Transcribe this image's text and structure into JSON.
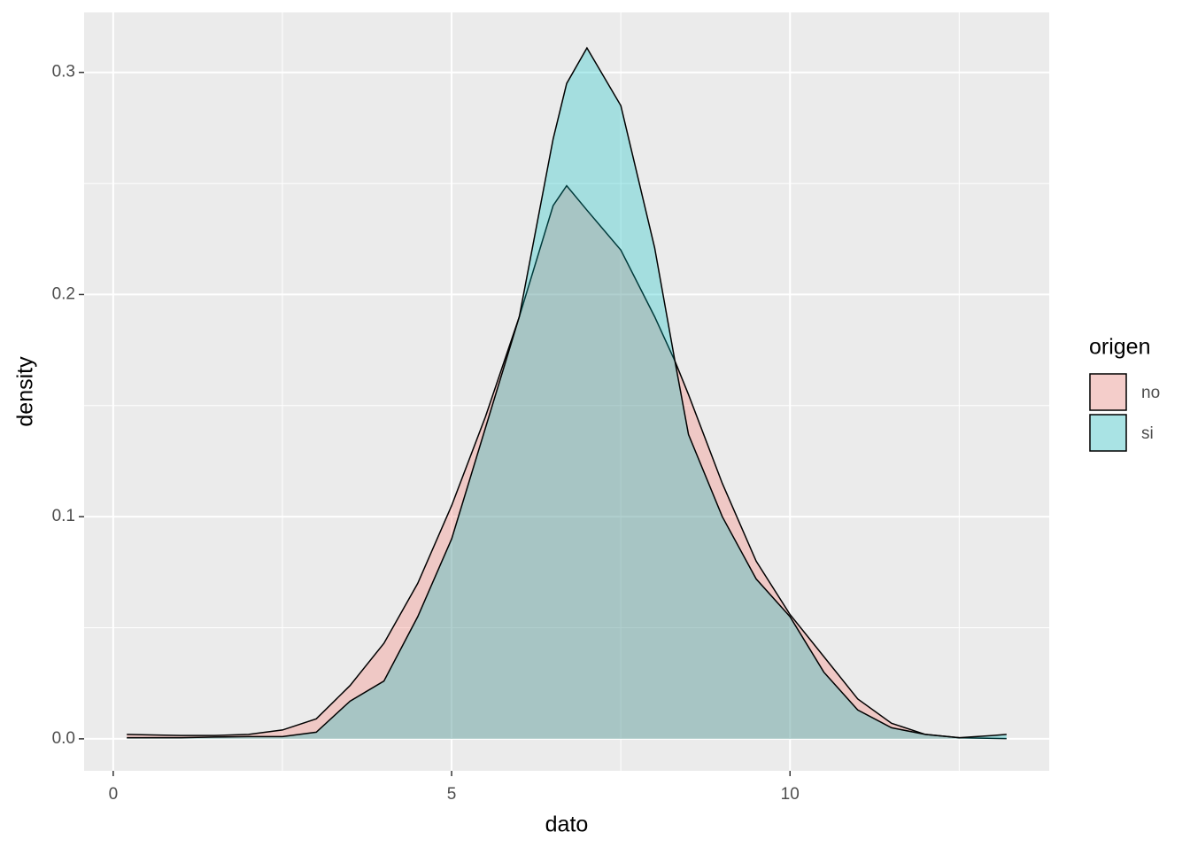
{
  "chart_data": {
    "type": "density",
    "x_label": "dato",
    "y_label": "density",
    "legend_title": "origen",
    "legend_position": "right",
    "grid": true,
    "xlim": [
      -0.43,
      13.83
    ],
    "ylim": [
      -0.0144,
      0.327
    ],
    "xticks": [
      0,
      5,
      10
    ],
    "yticks": [
      {
        "value": 0,
        "label": "0.0"
      },
      0.1,
      0.2,
      0.3
    ],
    "x_minor_ticks": [
      2.5,
      7.5,
      12.5
    ],
    "y_minor_ticks": [
      0.05,
      0.15,
      0.25
    ],
    "x": [
      0.2,
      0.5,
      1,
      1.5,
      2,
      2.5,
      3,
      3.5,
      4,
      4.5,
      5,
      5.5,
      6,
      6.5,
      6.7,
      7,
      7.5,
      8,
      8.3,
      8.5,
      9,
      9.5,
      10,
      10.5,
      11,
      11.5,
      12,
      12.5,
      13,
      13.2
    ],
    "series": [
      {
        "name": "no",
        "color": "#F8766D",
        "values": [
          0.002,
          0.0018,
          0.0015,
          0.0015,
          0.002,
          0.004,
          0.009,
          0.024,
          0.043,
          0.07,
          0.105,
          0.145,
          0.19,
          0.24,
          0.249,
          0.238,
          0.22,
          0.19,
          0.17,
          0.155,
          0.115,
          0.08,
          0.056,
          0.037,
          0.018,
          0.007,
          0.002,
          0.0005,
          0.0002,
          0.0001
        ]
      },
      {
        "name": "si",
        "color": "#00BFC4",
        "values": [
          0.0005,
          0.0005,
          0.0005,
          0.0008,
          0.001,
          0.001,
          0.003,
          0.017,
          0.026,
          0.055,
          0.09,
          0.14,
          0.19,
          0.27,
          0.295,
          0.311,
          0.285,
          0.221,
          0.17,
          0.137,
          0.1,
          0.072,
          0.055,
          0.03,
          0.013,
          0.005,
          0.002,
          0.0005,
          0.0015,
          0.002
        ]
      }
    ]
  }
}
